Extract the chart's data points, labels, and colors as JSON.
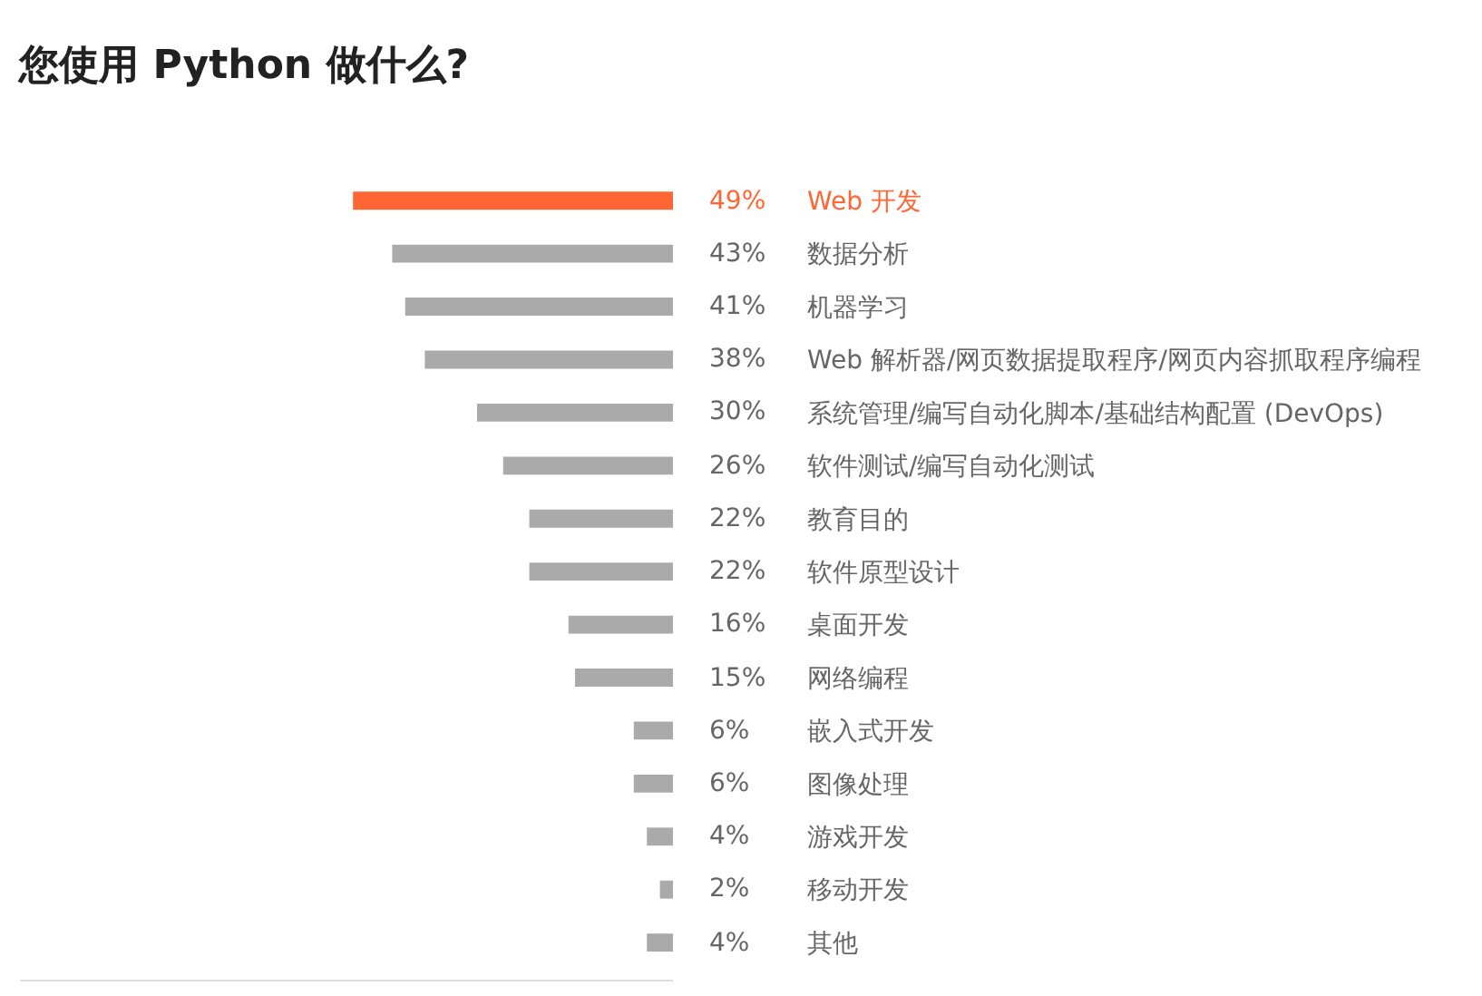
{
  "chart_data": {
    "type": "bar",
    "orientation": "horizontal",
    "title": "您使用 Python 做什么?",
    "categories": [
      "Web 开发",
      "数据分析",
      "机器学习",
      "Web 解析器/网页数据提取程序/网页内容抓取程序编程",
      "系统管理/编写自动化脚本/基础结构配置 (DevOps)",
      "软件测试/编写自动化测试",
      "教育目的",
      "软件原型设计",
      "桌面开发",
      "网络编程",
      "嵌入式开发",
      "图像处理",
      "游戏开发",
      "移动开发",
      "其他"
    ],
    "values": [
      49,
      43,
      41,
      38,
      30,
      26,
      22,
      22,
      16,
      15,
      6,
      6,
      4,
      2,
      4
    ],
    "value_labels": [
      "49%",
      "43%",
      "41%",
      "38%",
      "30%",
      "26%",
      "22%",
      "22%",
      "16%",
      "15%",
      "6%",
      "6%",
      "4%",
      "2%",
      "4%"
    ],
    "colors": [
      "#ff6633",
      "#aaaaaa",
      "#aaaaaa",
      "#aaaaaa",
      "#aaaaaa",
      "#aaaaaa",
      "#aaaaaa",
      "#aaaaaa",
      "#aaaaaa",
      "#aaaaaa",
      "#aaaaaa",
      "#aaaaaa",
      "#aaaaaa",
      "#aaaaaa",
      "#aaaaaa"
    ],
    "xlim": [
      100,
      0
    ],
    "tick_labels": "y",
    "grid": false,
    "legend": false
  }
}
